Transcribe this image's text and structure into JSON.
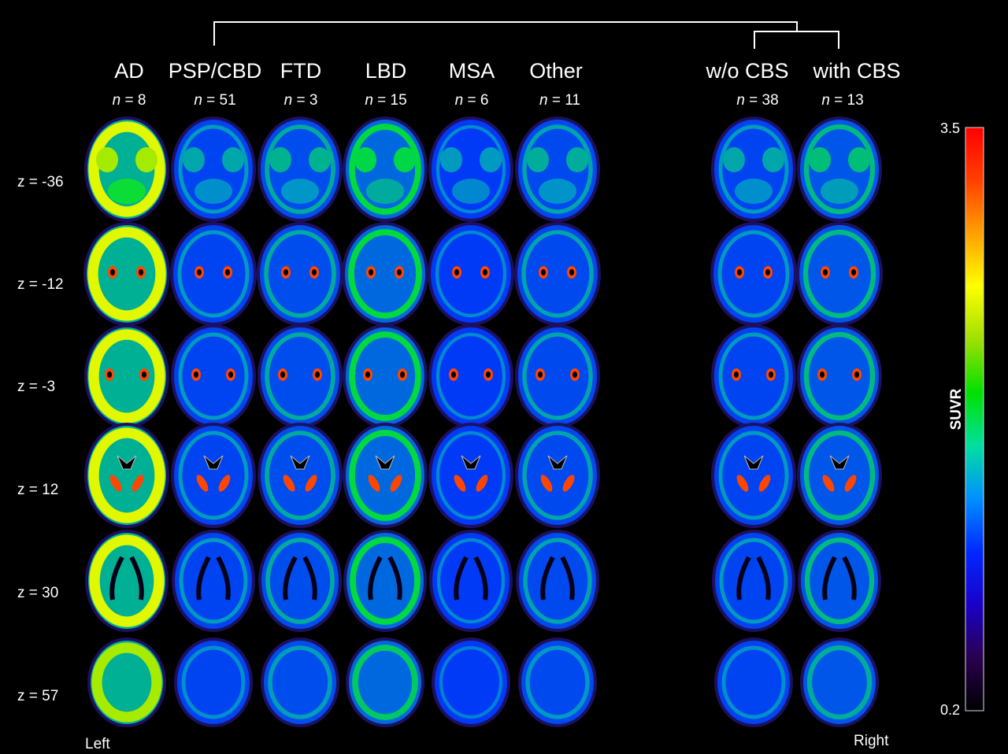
{
  "figure": {
    "groups": [
      {
        "name": "AD",
        "n_value": "8"
      },
      {
        "name": "PSP/CBD",
        "n_value": "51"
      },
      {
        "name": "FTD",
        "n_value": "3"
      },
      {
        "name": "LBD",
        "n_value": "15"
      },
      {
        "name": "MSA",
        "n_value": "6"
      },
      {
        "name": "Other",
        "n_value": "11"
      },
      {
        "name": "w/o CBS",
        "n_value": "38"
      },
      {
        "name": "with CBS",
        "n_value": "13"
      }
    ],
    "n_prefix": "n",
    "n_sep": " = ",
    "slices": [
      "z = -36",
      "z = -12",
      "z = -3",
      "z = 12",
      "z = 30",
      "z = 57"
    ],
    "orientation": {
      "left": "Left",
      "right": "Right"
    },
    "colorbar": {
      "label": "SUVR",
      "max": "3.5",
      "min": "0.2",
      "stops": [
        "#000000",
        "#2a0050",
        "#1a00c8",
        "#0028ff",
        "#0090ff",
        "#00e0a0",
        "#00e000",
        "#9ee000",
        "#ffff00",
        "#ffa000",
        "#ff4000",
        "#ff0000"
      ]
    },
    "intensity_levels": {
      "AD": 0.95,
      "PSP/CBD": 0.35,
      "FTD": 0.4,
      "LBD": 0.55,
      "MSA": 0.3,
      "Other": 0.38,
      "w/o CBS": 0.35,
      "with CBS": 0.45
    }
  }
}
